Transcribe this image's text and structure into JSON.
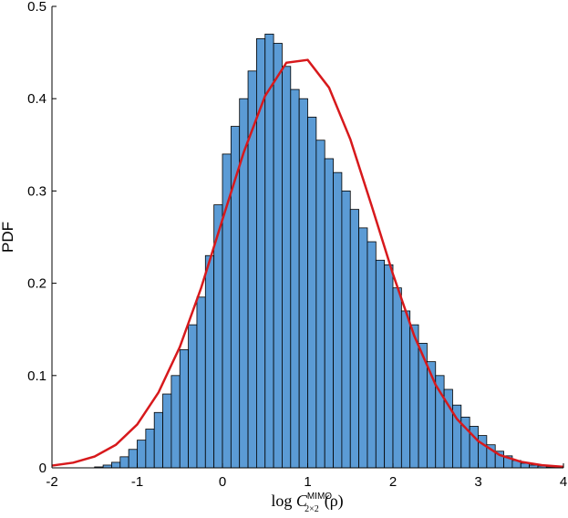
{
  "chart_data": {
    "type": "histogram",
    "ylabel": "PDF",
    "xlabel": {
      "prefix": "log",
      "symbol": "C",
      "superscript": "MIMO",
      "subscript": "2×2",
      "suffix": "(ρ)"
    },
    "bins": [
      -1.5,
      -1.4,
      -1.3,
      -1.2,
      -1.1,
      -1.0,
      -0.9,
      -0.8,
      -0.7,
      -0.6,
      -0.5,
      -0.4,
      -0.3,
      -0.2,
      -0.1,
      0,
      0.1,
      0.2,
      0.3,
      0.4,
      0.5,
      0.6,
      0.7,
      0.8,
      0.9,
      1.0,
      1.1,
      1.2,
      1.3,
      1.4,
      1.5,
      1.6,
      1.7,
      1.8,
      1.9,
      2.0,
      2.1,
      2.2,
      2.3,
      2.4,
      2.5,
      2.6,
      2.7,
      2.8,
      2.9,
      3.0,
      3.1,
      3.2,
      3.3,
      3.4,
      3.5,
      3.6,
      3.7,
      3.8,
      3.9
    ],
    "values": [
      0.001,
      0.003,
      0.006,
      0.012,
      0.02,
      0.03,
      0.042,
      0.06,
      0.08,
      0.1,
      0.128,
      0.155,
      0.185,
      0.23,
      0.285,
      0.34,
      0.37,
      0.4,
      0.43,
      0.465,
      0.47,
      0.46,
      0.435,
      0.41,
      0.4,
      0.38,
      0.355,
      0.335,
      0.32,
      0.3,
      0.28,
      0.26,
      0.245,
      0.225,
      0.22,
      0.195,
      0.17,
      0.155,
      0.135,
      0.115,
      0.1,
      0.085,
      0.068,
      0.055,
      0.045,
      0.035,
      0.025,
      0.018,
      0.013,
      0.008,
      0.005,
      0.003,
      0.002,
      0.001
    ],
    "color": "#5b9bd5",
    "edgecolor": "#000000",
    "curve": {
      "color": "#d7191c",
      "x": [
        -2,
        -1.75,
        -1.5,
        -1.25,
        -1,
        -0.75,
        -0.5,
        -0.25,
        0,
        0.25,
        0.5,
        0.75,
        1,
        1.25,
        1.5,
        1.75,
        2,
        2.25,
        2.5,
        2.75,
        3,
        3.25,
        3.5,
        3.75,
        4
      ],
      "values": [
        0.0024,
        0.0056,
        0.0123,
        0.025,
        0.047,
        0.0817,
        0.131,
        0.195,
        0.269,
        0.342,
        0.403,
        0.439,
        0.442,
        0.412,
        0.356,
        0.284,
        0.21,
        0.143,
        0.09,
        0.053,
        0.029,
        0.014,
        0.0066,
        0.0028,
        0.0011
      ]
    },
    "xlim": [
      -2,
      4
    ],
    "ylim": [
      0,
      0.5
    ],
    "xticks": [
      -2,
      -1,
      0,
      1,
      2,
      3,
      4
    ],
    "yticks": [
      0,
      0.1,
      0.2,
      0.3,
      0.4,
      0.5
    ]
  }
}
